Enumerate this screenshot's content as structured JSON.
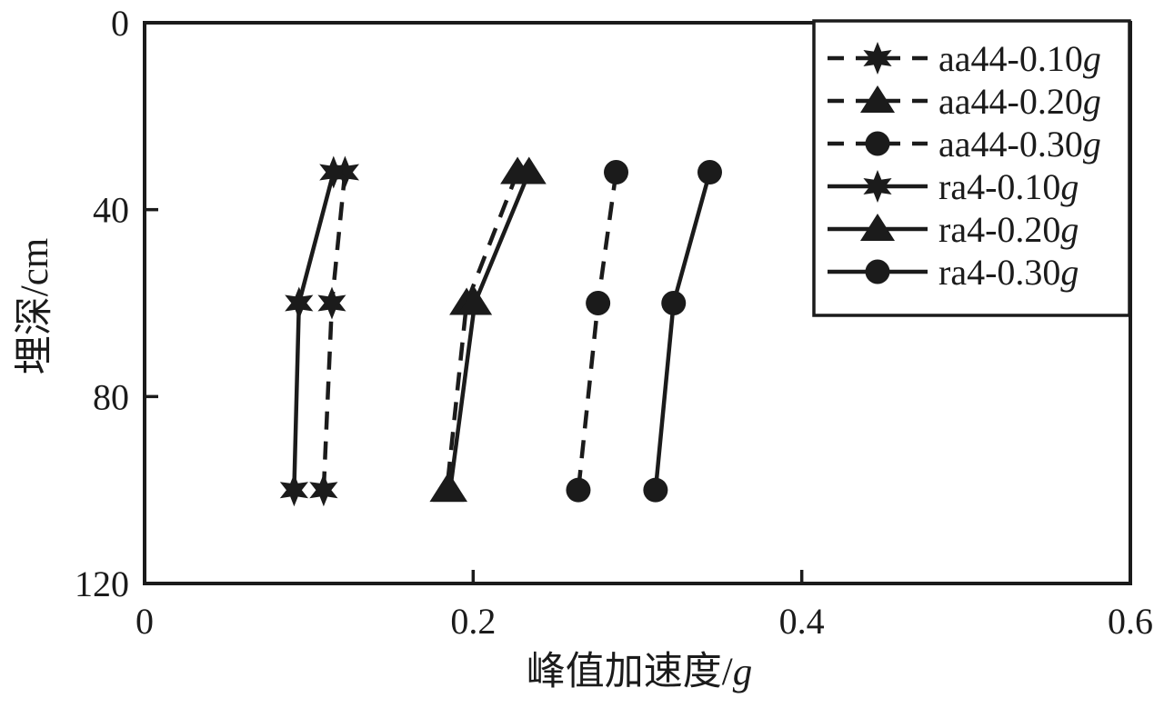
{
  "figure": {
    "background": "#ffffff",
    "ink_color": "#1b1b1b"
  },
  "chart_data": {
    "type": "line",
    "title": "",
    "xlabel": "峰值加速度/g",
    "xlabel_text": "峰值加速度/",
    "xlabel_unit": "g",
    "ylabel": "埋深/cm",
    "x_axis": {
      "min": 0,
      "max": 0.6,
      "tick_values": [
        0,
        0.2,
        0.4,
        0.6
      ],
      "tick_labels": [
        "0",
        "0.2",
        "0.4",
        "0.6"
      ]
    },
    "y_axis": {
      "min": 0,
      "max": 120,
      "inverted": true,
      "tick_values": [
        0,
        40,
        80,
        120
      ],
      "tick_labels": [
        "0",
        "40",
        "80",
        "120"
      ]
    },
    "grid": false,
    "legend_position": "top-right",
    "depths_cm": [
      32,
      60,
      100
    ],
    "series": [
      {
        "name": "aa44-0.10g",
        "line_style": "dashed",
        "marker": "star",
        "values": [
          0.122,
          0.114,
          0.109
        ]
      },
      {
        "name": "aa44-0.20g",
        "line_style": "dashed",
        "marker": "triangle",
        "values": [
          0.227,
          0.196,
          0.184
        ]
      },
      {
        "name": "aa44-0.30g",
        "line_style": "dashed",
        "marker": "circle",
        "values": [
          0.287,
          0.276,
          0.264
        ]
      },
      {
        "name": "ra4-0.10g",
        "line_style": "solid",
        "marker": "star",
        "values": [
          0.115,
          0.094,
          0.091
        ]
      },
      {
        "name": "ra4-0.20g",
        "line_style": "solid",
        "marker": "triangle",
        "values": [
          0.234,
          0.201,
          0.186
        ]
      },
      {
        "name": "ra4-0.30g",
        "line_style": "solid",
        "marker": "circle",
        "values": [
          0.344,
          0.322,
          0.311
        ]
      }
    ]
  }
}
